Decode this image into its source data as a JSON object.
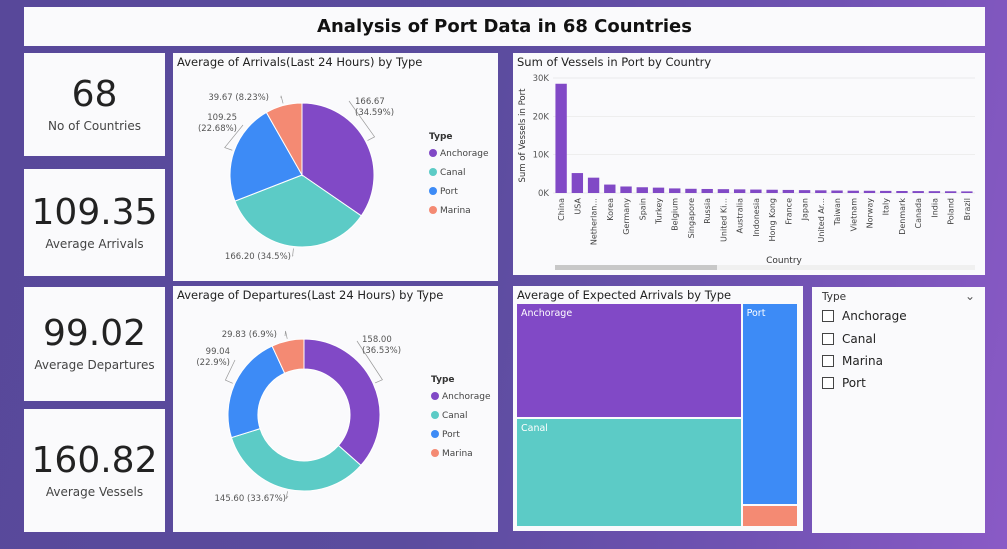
{
  "header": {
    "title": "Analysis of Port Data in 68 Countries"
  },
  "kpis": [
    {
      "value": "68",
      "label": "No of Countries"
    },
    {
      "value": "109.35",
      "label": "Average Arrivals"
    },
    {
      "value": "99.02",
      "label": "Average Departures"
    },
    {
      "value": "160.82",
      "label": "Average Vessels"
    }
  ],
  "colors": {
    "Anchorage": "#8149c6",
    "Canal": "#5ccbc6",
    "Port": "#3d8bf6",
    "Marina": "#f48a73"
  },
  "legend": {
    "title": "Type",
    "items": [
      "Anchorage",
      "Canal",
      "Port",
      "Marina"
    ]
  },
  "slicer": {
    "title": "Type",
    "options": [
      "Anchorage",
      "Canal",
      "Marina",
      "Port"
    ]
  },
  "chart_data": [
    {
      "type": "pie",
      "title": "Average of Arrivals(Last 24 Hours) by Type",
      "categories": [
        "Anchorage",
        "Canal",
        "Port",
        "Marina"
      ],
      "values": [
        166.67,
        166.2,
        109.25,
        39.67
      ],
      "labels": [
        "166.67 (34.59%)",
        "166.20 (34.5%)",
        "109.25 (22.68%)",
        "39.67 (8.23%)"
      ],
      "legend_title": "Type"
    },
    {
      "type": "pie",
      "subtype": "donut",
      "title": "Average of Departures(Last 24 Hours) by Type",
      "categories": [
        "Anchorage",
        "Canal",
        "Port",
        "Marina"
      ],
      "values": [
        158.0,
        145.6,
        99.04,
        29.83
      ],
      "labels": [
        "158.00 (36.53%)",
        "145.60 (33.67%)",
        "99.04 (22.9%)",
        "29.83 (6.9%)"
      ],
      "legend_title": "Type"
    },
    {
      "type": "bar",
      "title": "Sum of Vessels in Port by Country",
      "xlabel": "Country",
      "ylabel": "Sum of Vessels in Port",
      "ylim": [
        0,
        30000
      ],
      "yticks": [
        "0K",
        "10K",
        "20K",
        "30K"
      ],
      "categories": [
        "China",
        "USA",
        "Netherlan...",
        "Korea",
        "Germany",
        "Spain",
        "Turkey",
        "Belgium",
        "Singapore",
        "Russia",
        "United Ki...",
        "Australia",
        "Indonesia",
        "Hong Kong",
        "France",
        "Japan",
        "United Ar...",
        "Taiwan",
        "Vietnam",
        "Norway",
        "Italy",
        "Denmark",
        "Canada",
        "India",
        "Poland",
        "Brazil"
      ],
      "values": [
        28500,
        5200,
        4000,
        2200,
        1700,
        1500,
        1400,
        1200,
        1100,
        1050,
        1000,
        950,
        900,
        850,
        800,
        750,
        700,
        650,
        600,
        580,
        550,
        520,
        500,
        480,
        450,
        420
      ]
    },
    {
      "type": "treemap",
      "title": "Average of Expected Arrivals by Type",
      "categories": [
        "Anchorage",
        "Canal",
        "Port",
        "Marina"
      ],
      "values": [
        41,
        39,
        18,
        2
      ],
      "shown_labels": [
        "Anchorage",
        "Canal",
        "Port",
        ""
      ]
    }
  ]
}
